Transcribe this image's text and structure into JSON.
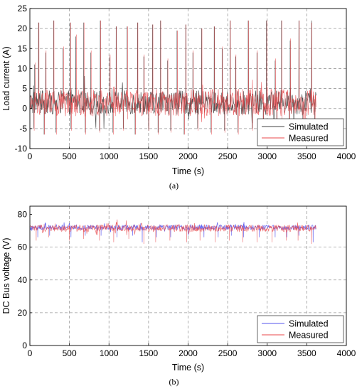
{
  "chart_data": [
    {
      "type": "line",
      "caption": "(a)",
      "xlabel": "Time (s)",
      "ylabel": "Load current (A)",
      "xlim": [
        0,
        4000
      ],
      "ylim": [
        -10,
        25
      ],
      "xticks": [
        0,
        500,
        1000,
        1500,
        2000,
        2500,
        3000,
        3500,
        4000
      ],
      "yticks": [
        -10,
        -5,
        0,
        5,
        10,
        15,
        20,
        25
      ],
      "grid": true,
      "legend_position": "bottom-right",
      "series": [
        {
          "name": "Simulated",
          "color": "#404040",
          "baseline": 1.5,
          "noise": 3.0,
          "x_end": 3620,
          "spikes_up": [
            [
              60,
              11
            ],
            [
              110,
              21.5
            ],
            [
              200,
              14
            ],
            [
              300,
              22
            ],
            [
              420,
              15
            ],
            [
              510,
              21.5
            ],
            [
              580,
              18
            ],
            [
              680,
              21.5
            ],
            [
              770,
              14
            ],
            [
              890,
              22
            ],
            [
              1010,
              13
            ],
            [
              1090,
              20.5
            ],
            [
              1230,
              20.5
            ],
            [
              1360,
              21.5
            ],
            [
              1440,
              13
            ],
            [
              1550,
              21
            ],
            [
              1650,
              22
            ],
            [
              1740,
              12
            ],
            [
              1860,
              19.5
            ],
            [
              1970,
              21
            ],
            [
              2060,
              14
            ],
            [
              2170,
              20
            ],
            [
              2330,
              20.5
            ],
            [
              2430,
              15
            ],
            [
              2530,
              22
            ],
            [
              2600,
              13
            ],
            [
              2760,
              22
            ],
            [
              2870,
              14
            ],
            [
              2990,
              22
            ],
            [
              3100,
              12
            ],
            [
              3180,
              22
            ],
            [
              3290,
              17
            ],
            [
              3400,
              22
            ],
            [
              3560,
              22
            ]
          ],
          "spikes_down": [
            [
              50,
              -5
            ],
            [
              180,
              -6.5
            ],
            [
              330,
              -6
            ],
            [
              520,
              -5
            ],
            [
              700,
              -6
            ],
            [
              880,
              -5.5
            ],
            [
              1050,
              -6
            ],
            [
              1180,
              -5
            ],
            [
              1330,
              -6.5
            ],
            [
              1500,
              -5
            ],
            [
              1620,
              -6
            ],
            [
              1780,
              -5.5
            ],
            [
              1950,
              -6.5
            ],
            [
              2120,
              -5
            ],
            [
              2290,
              -6
            ],
            [
              2460,
              -5.5
            ],
            [
              2630,
              -6
            ],
            [
              2810,
              -5
            ],
            [
              2950,
              -6
            ],
            [
              3120,
              -5.5
            ],
            [
              3280,
              -6
            ],
            [
              3450,
              -5
            ],
            [
              3600,
              -5.5
            ]
          ]
        },
        {
          "name": "Measured",
          "color": "#e8474a",
          "baseline": 1.5,
          "noise": 3.4,
          "x_end": 3620,
          "spikes_up": [
            [
              70,
              11.5
            ],
            [
              115,
              21.5
            ],
            [
              205,
              14.5
            ],
            [
              305,
              22
            ],
            [
              425,
              15.5
            ],
            [
              515,
              21.5
            ],
            [
              590,
              18.5
            ],
            [
              685,
              21.5
            ],
            [
              775,
              14.5
            ],
            [
              895,
              22
            ],
            [
              1015,
              13.5
            ],
            [
              1095,
              20.5
            ],
            [
              1235,
              20.5
            ],
            [
              1365,
              21.5
            ],
            [
              1445,
              13.5
            ],
            [
              1555,
              21
            ],
            [
              1655,
              22
            ],
            [
              1745,
              12.5
            ],
            [
              1865,
              19.5
            ],
            [
              1975,
              21
            ],
            [
              2065,
              14.5
            ],
            [
              2175,
              20
            ],
            [
              2335,
              20.5
            ],
            [
              2435,
              15.5
            ],
            [
              2535,
              22
            ],
            [
              2605,
              13.5
            ],
            [
              2765,
              22
            ],
            [
              2875,
              14.5
            ],
            [
              2995,
              22
            ],
            [
              3105,
              12.5
            ],
            [
              3185,
              22
            ],
            [
              3295,
              17.5
            ],
            [
              3405,
              22
            ],
            [
              3565,
              21.5
            ]
          ],
          "spikes_down": [
            [
              55,
              -5.5
            ],
            [
              185,
              -6.5
            ],
            [
              335,
              -6.5
            ],
            [
              525,
              -5.5
            ],
            [
              705,
              -6.5
            ],
            [
              885,
              -6
            ],
            [
              1055,
              -6.5
            ],
            [
              1185,
              -5.5
            ],
            [
              1335,
              -6.5
            ],
            [
              1505,
              -5.5
            ],
            [
              1625,
              -6.5
            ],
            [
              1785,
              -6
            ],
            [
              1955,
              -6.5
            ],
            [
              2125,
              -5.5
            ],
            [
              2295,
              -6.5
            ],
            [
              2465,
              -6
            ],
            [
              2635,
              -6.5
            ],
            [
              2815,
              -5.5
            ],
            [
              2955,
              -6.5
            ],
            [
              3125,
              -6
            ],
            [
              3285,
              -6.5
            ],
            [
              3455,
              -5.5
            ],
            [
              3605,
              -6
            ]
          ]
        }
      ]
    },
    {
      "type": "line",
      "caption": "(b)",
      "xlabel": "Time (s)",
      "ylabel": "DC Bus voltage (V)",
      "xlim": [
        0,
        4000
      ],
      "ylim": [
        0,
        85
      ],
      "xticks": [
        0,
        500,
        1000,
        1500,
        2000,
        2500,
        3000,
        3500,
        4000
      ],
      "yticks": [
        0,
        20,
        40,
        60,
        80
      ],
      "grid": true,
      "legend_position": "bottom-right",
      "series": [
        {
          "name": "Simulated",
          "color": "#5555ee",
          "baseline": 72,
          "noise": 1.6,
          "x_end": 3620,
          "spikes_up": [
            [
              200,
              74.5
            ],
            [
              1400,
              74.5
            ],
            [
              2600,
              74
            ]
          ],
          "spikes_down": [
            [
              100,
              66
            ],
            [
              250,
              67
            ],
            [
              520,
              66
            ],
            [
              700,
              67
            ],
            [
              900,
              67
            ],
            [
              1100,
              66
            ],
            [
              1300,
              67
            ],
            [
              1420,
              63
            ],
            [
              1600,
              66
            ],
            [
              1780,
              66
            ],
            [
              2000,
              67
            ],
            [
              2200,
              66
            ],
            [
              2380,
              66
            ],
            [
              2550,
              67
            ],
            [
              2700,
              66
            ],
            [
              2900,
              66
            ],
            [
              3100,
              66
            ],
            [
              3250,
              66
            ],
            [
              3400,
              67
            ],
            [
              3580,
              63
            ]
          ]
        },
        {
          "name": "Measured",
          "color": "#e8474a",
          "baseline": 71.5,
          "noise": 2.2,
          "x_end": 3620,
          "spikes_up": [
            [
              180,
              74
            ],
            [
              1380,
              74
            ],
            [
              2620,
              73.5
            ]
          ],
          "spikes_down": [
            [
              80,
              64
            ],
            [
              240,
              66
            ],
            [
              500,
              64
            ],
            [
              680,
              65
            ],
            [
              880,
              64
            ],
            [
              1060,
              63
            ],
            [
              1250,
              65
            ],
            [
              1440,
              62
            ],
            [
              1590,
              63
            ],
            [
              1770,
              64
            ],
            [
              1980,
              63
            ],
            [
              2150,
              64
            ],
            [
              2340,
              63
            ],
            [
              2520,
              64
            ],
            [
              2690,
              63
            ],
            [
              2870,
              63
            ],
            [
              3060,
              63
            ],
            [
              3240,
              64
            ],
            [
              3390,
              64
            ],
            [
              3560,
              62
            ]
          ]
        }
      ]
    }
  ]
}
